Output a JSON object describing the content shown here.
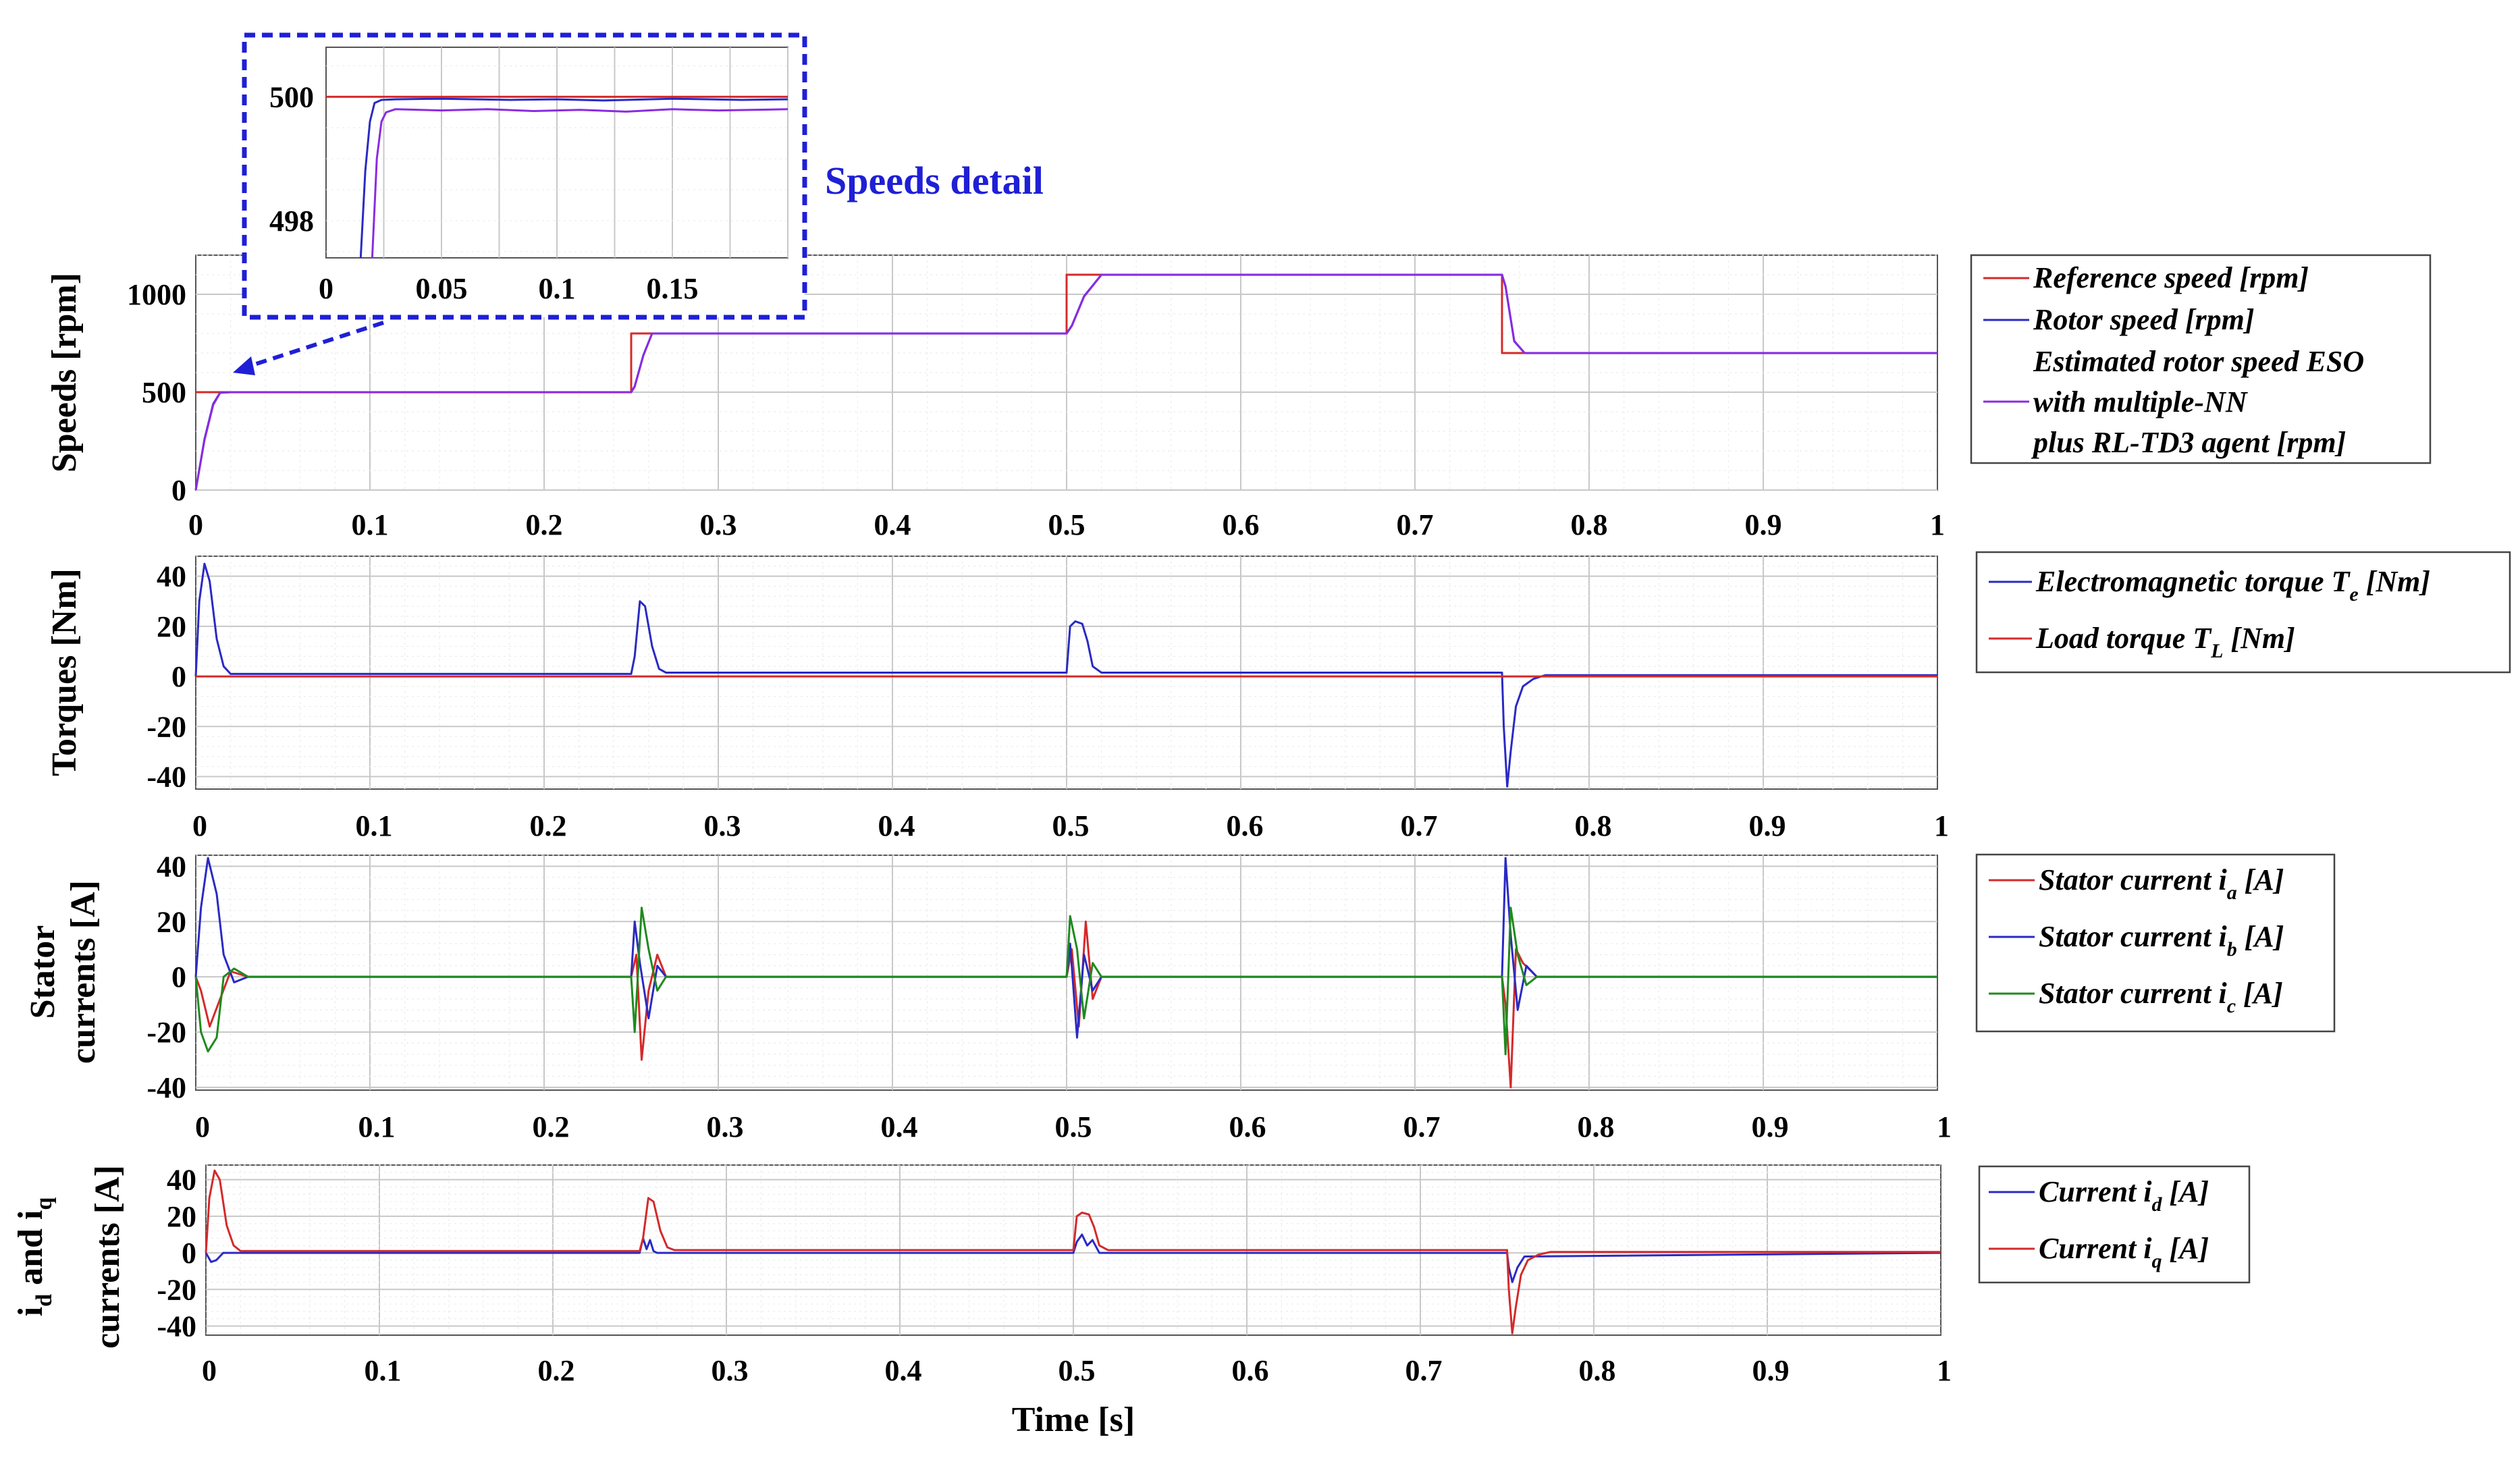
{
  "colors": {
    "red": "#d42a2a",
    "blue": "#2a2ac4",
    "purple": "#8a2be2",
    "green": "#1f8a1f",
    "callout": "#1f1fd6"
  },
  "xaxis": {
    "label": "Time [s]",
    "range": [
      0,
      1
    ],
    "ticks": [
      "0",
      "0.1",
      "0.2",
      "0.3",
      "0.4",
      "0.5",
      "0.6",
      "0.7",
      "0.8",
      "0.9",
      "1"
    ]
  },
  "inset": {
    "callout_label": "Speeds detail",
    "yticks": [
      "498",
      "500"
    ],
    "xticks": [
      "0",
      "0.05",
      "0.1",
      "0.15"
    ],
    "xrange": [
      0,
      0.2
    ],
    "yrange": [
      497.4,
      500.8
    ]
  },
  "panels": [
    {
      "id": "speeds",
      "ylabel_lines": [
        "Speeds [rpm]"
      ],
      "yrange": [
        0,
        1200
      ],
      "yticks": [
        "0",
        "500",
        "1000"
      ],
      "legend": [
        {
          "label": "Reference speed [rpm]",
          "color": "red"
        },
        {
          "label": "Rotor speed [rpm]",
          "color": "blue"
        },
        {
          "label": "Estimated rotor speed ESO",
          "color": "purple"
        },
        {
          "label": "with multiple-NN",
          "color": ""
        },
        {
          "label": "plus RL-TD3 agent  [rpm]",
          "color": ""
        }
      ]
    },
    {
      "id": "torques",
      "ylabel_lines": [
        "Torques [Nm]"
      ],
      "yrange": [
        -45,
        48
      ],
      "yticks": [
        "-40",
        "-20",
        "0",
        "20",
        "40"
      ],
      "legend": [
        {
          "label": "Electromagnetic torque T",
          "sub": "e",
          "suffix": " [Nm]",
          "color": "blue"
        },
        {
          "label": "Load torque T",
          "sub": "L",
          "suffix": " [Nm]",
          "color": "red"
        }
      ]
    },
    {
      "id": "stator",
      "ylabel_lines": [
        "Stator",
        "currents [A]"
      ],
      "yrange": [
        -41,
        44
      ],
      "yticks": [
        "-40",
        "-20",
        "0",
        "20",
        "40"
      ],
      "legend": [
        {
          "label": "Stator current i",
          "sub": "a",
          "suffix": " [A]",
          "color": "red"
        },
        {
          "label": "Stator current i",
          "sub": "b",
          "suffix": " [A]",
          "color": "blue"
        },
        {
          "label": "Stator current i",
          "sub": "c",
          "suffix": " [A]",
          "color": "green"
        }
      ]
    },
    {
      "id": "dq",
      "ylabel_lines": [
        "i  and i",
        "currents [A]"
      ],
      "ylabel_subs": [
        "d",
        "q"
      ],
      "yrange": [
        -45,
        48
      ],
      "yticks": [
        "-40",
        "-20",
        "0",
        "20",
        "40"
      ],
      "legend": [
        {
          "label": "Current i",
          "sub": "d",
          "suffix": " [A]",
          "color": "blue"
        },
        {
          "label": "Current i",
          "sub": "q",
          "suffix": " [A]",
          "color": "red"
        }
      ]
    }
  ],
  "chart_data": [
    {
      "type": "line",
      "panel": "speeds",
      "ylabel": "Speeds [rpm]",
      "xlabel": "",
      "xlim": [
        0,
        1
      ],
      "ylim": [
        0,
        1200
      ],
      "grid": true,
      "legend_position": "outside-right",
      "series": [
        {
          "name": "Reference speed [rpm]",
          "color": "red",
          "x": [
            0,
            0.25,
            0.25,
            0.5,
            0.5,
            0.75,
            0.75,
            1
          ],
          "y": [
            500,
            500,
            800,
            800,
            1100,
            1100,
            700,
            700
          ]
        },
        {
          "name": "Rotor speed [rpm]",
          "color": "blue",
          "x": [
            0,
            0.005,
            0.01,
            0.014,
            0.02,
            0.25,
            0.252,
            0.257,
            0.262,
            0.5,
            0.503,
            0.51,
            0.52,
            0.75,
            0.752,
            0.757,
            0.763,
            1
          ],
          "y": [
            0,
            260,
            440,
            498,
            500,
            500,
            530,
            690,
            800,
            800,
            840,
            990,
            1100,
            1100,
            1040,
            760,
            700,
            700
          ]
        },
        {
          "name": "Estimated rotor speed ESO with multiple-NN plus RL-TD3 agent  [rpm]",
          "color": "purple",
          "x": [
            0,
            0.005,
            0.01,
            0.014,
            0.02,
            0.25,
            0.252,
            0.257,
            0.262,
            0.5,
            0.503,
            0.51,
            0.52,
            0.75,
            0.752,
            0.757,
            0.763,
            1
          ],
          "y": [
            0,
            255,
            435,
            497,
            499.8,
            499.8,
            528,
            688,
            799.8,
            799.8,
            838,
            988,
            1099.8,
            1099.8,
            1042,
            762,
            699.8,
            699.8
          ]
        }
      ]
    },
    {
      "type": "line",
      "panel": "speeds-detail",
      "title": "Speeds detail",
      "xlim": [
        0,
        0.2
      ],
      "ylim": [
        497.4,
        500.8
      ],
      "grid": true,
      "series": [
        {
          "name": "Reference speed [rpm]",
          "color": "red",
          "x": [
            0,
            0.2
          ],
          "y": [
            500,
            500
          ]
        },
        {
          "name": "Rotor speed [rpm]",
          "color": "blue",
          "x": [
            0.015,
            0.017,
            0.019,
            0.021,
            0.024,
            0.03,
            0.05,
            0.08,
            0.1,
            0.12,
            0.15,
            0.18,
            0.2
          ],
          "y": [
            497.4,
            498.8,
            499.6,
            499.9,
            499.95,
            499.96,
            499.97,
            499.95,
            499.96,
            499.94,
            499.97,
            499.95,
            499.96
          ]
        },
        {
          "name": "Estimated rotor speed ESO with multiple-NN plus RL-TD3 agent  [rpm]",
          "color": "purple",
          "x": [
            0.02,
            0.022,
            0.024,
            0.026,
            0.03,
            0.05,
            0.07,
            0.09,
            0.11,
            0.13,
            0.15,
            0.17,
            0.2
          ],
          "y": [
            497.4,
            499.0,
            499.6,
            499.75,
            499.8,
            499.78,
            499.8,
            499.77,
            499.79,
            499.76,
            499.8,
            499.78,
            499.8
          ]
        }
      ]
    },
    {
      "type": "line",
      "panel": "torques",
      "ylabel": "Torques [Nm]",
      "xlim": [
        0,
        1
      ],
      "ylim": [
        -45,
        48
      ],
      "grid": true,
      "legend_position": "outside-right",
      "series": [
        {
          "name": "Electromagnetic torque T_e [Nm]",
          "color": "blue",
          "x": [
            0,
            0.002,
            0.005,
            0.008,
            0.012,
            0.016,
            0.02,
            0.25,
            0.252,
            0.255,
            0.258,
            0.262,
            0.266,
            0.27,
            0.5,
            0.502,
            0.505,
            0.509,
            0.512,
            0.515,
            0.52,
            0.75,
            0.751,
            0.753,
            0.755,
            0.758,
            0.762,
            0.768,
            0.775,
            1
          ],
          "y": [
            0,
            30,
            45,
            38,
            15,
            4,
            1,
            1,
            8,
            30,
            28,
            12,
            3,
            1.5,
            1.5,
            20,
            22,
            21,
            14,
            4,
            1.5,
            1.5,
            -20,
            -44,
            -30,
            -12,
            -4,
            -1,
            0.5,
            0.5
          ]
        },
        {
          "name": "Load torque T_L [Nm]",
          "color": "red",
          "x": [
            0,
            1
          ],
          "y": [
            0,
            0
          ]
        }
      ]
    },
    {
      "type": "line",
      "panel": "stator",
      "ylabel": "Stator currents [A]",
      "xlim": [
        0,
        1
      ],
      "ylim": [
        -41,
        44
      ],
      "grid": true,
      "legend_position": "outside-right",
      "series": [
        {
          "name": "Stator current i_a [A]",
          "color": "red",
          "x": [
            0,
            0.003,
            0.008,
            0.014,
            0.02,
            0.03,
            0.25,
            0.253,
            0.256,
            0.26,
            0.265,
            0.27,
            0.5,
            0.503,
            0.507,
            0.511,
            0.515,
            0.52,
            0.75,
            0.752,
            0.755,
            0.758,
            0.762,
            0.77,
            1
          ],
          "y": [
            0,
            -5,
            -18,
            -8,
            2,
            0,
            0,
            8,
            -30,
            -5,
            8,
            0,
            0,
            10,
            -18,
            20,
            -8,
            0,
            0,
            -10,
            -40,
            10,
            5,
            0,
            0
          ]
        },
        {
          "name": "Stator current i_b [A]",
          "color": "blue",
          "x": [
            0,
            0.003,
            0.007,
            0.012,
            0.016,
            0.022,
            0.03,
            0.25,
            0.252,
            0.255,
            0.26,
            0.265,
            0.27,
            0.5,
            0.502,
            0.506,
            0.51,
            0.515,
            0.52,
            0.75,
            0.752,
            0.755,
            0.759,
            0.764,
            0.77,
            1
          ],
          "y": [
            0,
            25,
            43,
            30,
            8,
            -2,
            0,
            0,
            20,
            5,
            -15,
            4,
            0,
            0,
            12,
            -22,
            8,
            -5,
            0,
            0,
            43,
            15,
            -12,
            4,
            0,
            0
          ]
        },
        {
          "name": "Stator current i_c [A]",
          "color": "green",
          "x": [
            0,
            0.003,
            0.007,
            0.012,
            0.016,
            0.022,
            0.03,
            0.25,
            0.252,
            0.256,
            0.26,
            0.265,
            0.27,
            0.5,
            0.502,
            0.506,
            0.51,
            0.515,
            0.52,
            0.75,
            0.752,
            0.755,
            0.759,
            0.764,
            0.77,
            1
          ],
          "y": [
            0,
            -20,
            -27,
            -22,
            0,
            3,
            0,
            0,
            -20,
            25,
            10,
            -5,
            0,
            0,
            22,
            10,
            -15,
            5,
            0,
            0,
            -28,
            25,
            8,
            -3,
            0,
            0
          ]
        }
      ]
    },
    {
      "type": "line",
      "panel": "dq",
      "ylabel": "i_d and i_q currents [A]",
      "xlabel": "Time [s]",
      "xlim": [
        0,
        1
      ],
      "ylim": [
        -45,
        48
      ],
      "grid": true,
      "legend_position": "outside-right",
      "series": [
        {
          "name": "Current i_d [A]",
          "color": "blue",
          "x": [
            0,
            0.003,
            0.006,
            0.01,
            0.014,
            0.25,
            0.252,
            0.254,
            0.256,
            0.258,
            0.26,
            0.5,
            0.502,
            0.505,
            0.508,
            0.511,
            0.515,
            0.75,
            0.751,
            0.753,
            0.756,
            0.76,
            1
          ],
          "y": [
            0,
            -5,
            -4,
            0,
            0,
            0,
            8,
            2,
            7,
            1,
            0,
            0,
            6,
            10,
            4,
            7,
            0,
            0,
            -8,
            -16,
            -8,
            -2,
            0
          ]
        },
        {
          "name": "Current i_q [A]",
          "color": "red",
          "x": [
            0,
            0.002,
            0.005,
            0.008,
            0.012,
            0.016,
            0.02,
            0.25,
            0.252,
            0.255,
            0.258,
            0.262,
            0.266,
            0.27,
            0.5,
            0.502,
            0.505,
            0.509,
            0.512,
            0.515,
            0.52,
            0.75,
            0.751,
            0.753,
            0.755,
            0.758,
            0.762,
            0.768,
            0.775,
            1
          ],
          "y": [
            0,
            30,
            45,
            40,
            15,
            4,
            1,
            1,
            8,
            30,
            28,
            12,
            3,
            1.5,
            1.5,
            20,
            22,
            21,
            14,
            4,
            1.5,
            1.5,
            -20,
            -44,
            -30,
            -12,
            -4,
            -1,
            0.5,
            0.5
          ]
        }
      ]
    }
  ]
}
